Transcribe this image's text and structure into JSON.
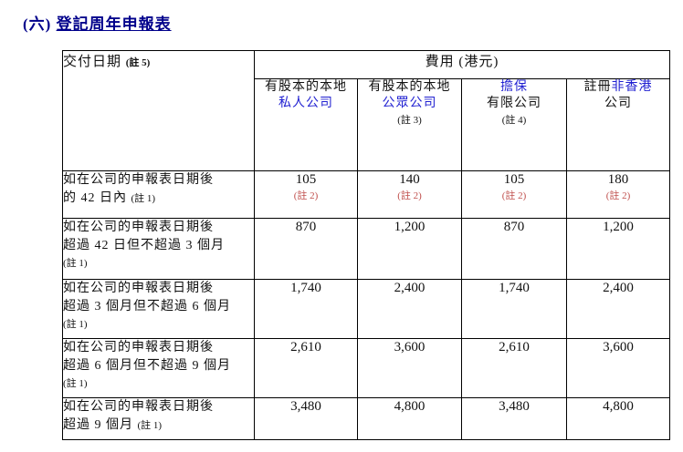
{
  "title": {
    "prefix": "(六)",
    "main": "登記周年申報表"
  },
  "colors": {
    "title_blue": "#00008B",
    "accent_blue": "#1F1FD1",
    "note_red": "#C0504D",
    "border_black": "#000000"
  },
  "table": {
    "fee_header": "費用 (港元)",
    "delivery_header": {
      "text": "交付日期",
      "note": "(註 5)"
    },
    "columns": [
      {
        "lines": [
          [
            {
              "t": "有股本的本地",
              "c": "k"
            }
          ],
          [
            {
              "t": "私人公司",
              "c": "b"
            }
          ]
        ]
      },
      {
        "lines": [
          [
            {
              "t": "有股本的本地",
              "c": "k"
            }
          ],
          [
            {
              "t": "公眾公司",
              "c": "b"
            }
          ],
          [
            {
              "t": "(註 3)",
              "c": "k",
              "s": true
            }
          ]
        ]
      },
      {
        "lines": [
          [
            {
              "t": "擔保",
              "c": "b"
            }
          ],
          [
            {
              "t": "有限公司",
              "c": "k"
            }
          ],
          [
            {
              "t": "(註 4)",
              "c": "k",
              "s": true
            }
          ]
        ]
      },
      {
        "lines": [
          [
            {
              "t": "註冊",
              "c": "k"
            },
            {
              "t": "非香港",
              "c": "b"
            }
          ],
          [
            {
              "t": "公司",
              "c": "k"
            }
          ]
        ]
      }
    ],
    "rows": [
      {
        "label_lines": [
          [
            {
              "t": "如在公司的申報表日期後"
            }
          ],
          [
            {
              "t": "的 42 日內 "
            },
            {
              "t": "(註 1)",
              "s": true
            }
          ]
        ],
        "values": [
          {
            "v": "105",
            "note": "(註 2)"
          },
          {
            "v": "140",
            "note": "(註 2)"
          },
          {
            "v": "105",
            "note": "(註 2)"
          },
          {
            "v": "180",
            "note": "(註 2)"
          }
        ]
      },
      {
        "label_lines": [
          [
            {
              "t": "如在公司的申報表日期後"
            }
          ],
          [
            {
              "t": "超過 42 日但不超過 3 個月"
            }
          ],
          [
            {
              "t": "(註 1)",
              "s": true
            }
          ]
        ],
        "values": [
          {
            "v": "870"
          },
          {
            "v": "1,200"
          },
          {
            "v": "870"
          },
          {
            "v": "1,200"
          }
        ]
      },
      {
        "label_lines": [
          [
            {
              "t": "如在公司的申報表日期後"
            }
          ],
          [
            {
              "t": "超過 3 個月但不超過 6 個月"
            }
          ],
          [
            {
              "t": "(註 1)",
              "s": true
            }
          ]
        ],
        "values": [
          {
            "v": "1,740"
          },
          {
            "v": "2,400"
          },
          {
            "v": "1,740"
          },
          {
            "v": "2,400"
          }
        ]
      },
      {
        "label_lines": [
          [
            {
              "t": "如在公司的申報表日期後"
            }
          ],
          [
            {
              "t": "超過 6 個月但不超過 9 個月"
            }
          ],
          [
            {
              "t": "(註 1)",
              "s": true
            }
          ]
        ],
        "values": [
          {
            "v": "2,610"
          },
          {
            "v": "3,600"
          },
          {
            "v": "2,610"
          },
          {
            "v": "3,600"
          }
        ]
      },
      {
        "label_lines": [
          [
            {
              "t": "如在公司的申報表日期後"
            }
          ],
          [
            {
              "t": "超過 9 個月 "
            },
            {
              "t": "(註 1)",
              "s": true
            }
          ]
        ],
        "values": [
          {
            "v": "3,480"
          },
          {
            "v": "4,800"
          },
          {
            "v": "3,480"
          },
          {
            "v": "4,800"
          }
        ]
      }
    ]
  }
}
